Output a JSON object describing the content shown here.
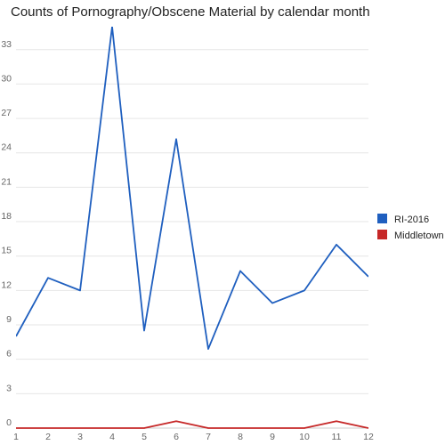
{
  "chart_data": {
    "type": "line",
    "title": "Counts of Pornography/Obscene Material by calendar month",
    "xlabel": "",
    "ylabel": "",
    "x": [
      1,
      2,
      3,
      4,
      5,
      6,
      7,
      8,
      9,
      10,
      11,
      12
    ],
    "x_ticks": [
      "1",
      "2",
      "3",
      "4",
      "5",
      "6",
      "7",
      "8",
      "9",
      "10",
      "11",
      "12"
    ],
    "y_ticks": [
      0,
      3,
      6,
      9,
      12,
      15,
      18,
      21,
      24,
      27,
      30,
      33
    ],
    "ylim": [
      0,
      35
    ],
    "grid": true,
    "legend_position": "right",
    "series": [
      {
        "name": "RI-2016",
        "color": "#1f5fbf",
        "values": [
          8.0,
          13.1,
          12.0,
          35.0,
          8.5,
          25.2,
          6.9,
          13.7,
          10.9,
          12.0,
          16.0,
          13.2
        ]
      },
      {
        "name": "Middletown",
        "color": "#c62828",
        "values": [
          0,
          0,
          0,
          0,
          0,
          0.6,
          0,
          0,
          0,
          0,
          0.6,
          0
        ]
      }
    ]
  }
}
